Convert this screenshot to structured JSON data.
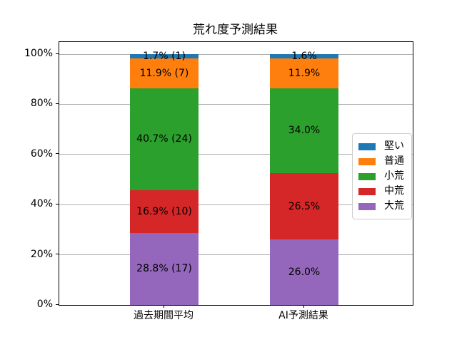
{
  "chart_data": {
    "type": "bar",
    "stacked": true,
    "title": "荒れ度予測結果",
    "categories": [
      "過去期間平均",
      "AI予測結果"
    ],
    "series": [
      {
        "name": "堅い",
        "color": "#1f77b4",
        "values": [
          1.7,
          1.6
        ],
        "labels": [
          "1.7% (1)",
          "1.6%"
        ]
      },
      {
        "name": "普通",
        "color": "#ff7f0e",
        "values": [
          11.9,
          11.9
        ],
        "labels": [
          "11.9% (7)",
          "11.9%"
        ]
      },
      {
        "name": "小荒",
        "color": "#2ca02c",
        "values": [
          40.7,
          34.0
        ],
        "labels": [
          "40.7% (24)",
          "34.0%"
        ]
      },
      {
        "name": "中荒",
        "color": "#d62728",
        "values": [
          16.9,
          26.5
        ],
        "labels": [
          "16.9% (10)",
          "26.5%"
        ]
      },
      {
        "name": "大荒",
        "color": "#9467bd",
        "values": [
          28.8,
          26.0
        ],
        "labels": [
          "28.8% (17)",
          "26.0%"
        ]
      }
    ],
    "stack_bottom_to_top": [
      "大荒",
      "中荒",
      "小荒",
      "普通",
      "堅い"
    ],
    "yticks": [
      0,
      20,
      40,
      60,
      80,
      100
    ],
    "ytick_labels": [
      "0%",
      "20%",
      "40%",
      "60%",
      "80%",
      "100%"
    ],
    "ylim": [
      0,
      105
    ],
    "grid": true,
    "grid_color": "#b0b0b0",
    "legend_position": "right-inside",
    "background": "#ffffff",
    "text_color": "#000000"
  }
}
